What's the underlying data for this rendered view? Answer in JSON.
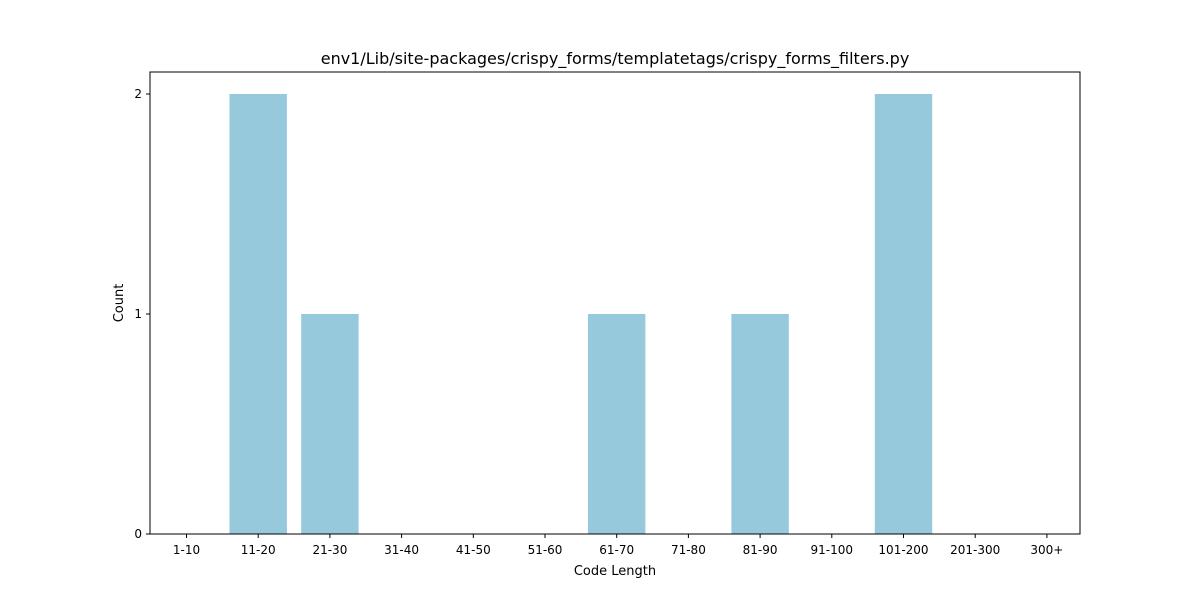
{
  "chart_data": {
    "type": "bar",
    "title": "env1/Lib/site-packages/crispy_forms/templatetags/crispy_forms_filters.py",
    "xlabel": "Code Length",
    "ylabel": "Count",
    "categories": [
      "1-10",
      "11-20",
      "21-30",
      "31-40",
      "41-50",
      "51-60",
      "61-70",
      "71-80",
      "81-90",
      "91-100",
      "101-200",
      "201-300",
      "300+"
    ],
    "values": [
      0,
      2,
      1,
      0,
      0,
      0,
      1,
      0,
      1,
      0,
      2,
      0,
      0
    ],
    "ylim": [
      0,
      2.1
    ],
    "yticks": [
      0,
      1,
      2
    ],
    "bar_color": "#96c9dc",
    "grid": false,
    "legend": "none"
  }
}
